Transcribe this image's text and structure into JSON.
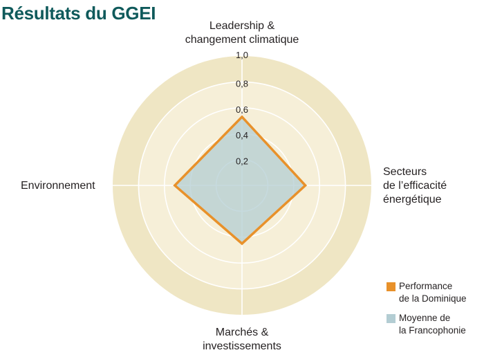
{
  "title": "Résultats du GGEI",
  "axes": {
    "top": [
      "Leadership &",
      "changement climatique"
    ],
    "right": [
      "Secteurs",
      "de l’efficacité",
      "énergétique"
    ],
    "bottom": [
      "Marchés &",
      "investissements"
    ],
    "left": [
      "Environnement"
    ]
  },
  "ticks": [
    "0,2",
    "0,4",
    "0,6",
    "0,8",
    "1,0"
  ],
  "legend": {
    "items": [
      {
        "lines": [
          "Performance",
          "de la Dominique"
        ],
        "color": "#e8912a"
      },
      {
        "lines": [
          "Moyenne de",
          "la Francophonie"
        ],
        "color": "#b3cdd3"
      }
    ]
  },
  "colors": {
    "title": "#0f5a5b",
    "outer_ring": "#efe6c4",
    "inner_ring": "#f6efd8",
    "dominique": "#e8912a",
    "francophonie": "#b3cdd3"
  },
  "chart_data": {
    "type": "radar",
    "title": "Résultats du GGEI",
    "categories": [
      "Leadership & changement climatique",
      "Secteurs de l’efficacité énergétique",
      "Marchés & investissements",
      "Environnement"
    ],
    "series": [
      {
        "name": "Performance de la Dominique",
        "values": [
          0.53,
          0.49,
          0.45,
          0.52
        ],
        "color": "#e8912a",
        "style": "outline"
      },
      {
        "name": "Moyenne de la Francophonie",
        "values": [
          0.53,
          0.49,
          0.46,
          0.52
        ],
        "color": "#b3cdd3",
        "style": "fill"
      }
    ],
    "rlim": [
      0,
      1.0
    ],
    "rticks": [
      0.2,
      0.4,
      0.6,
      0.8,
      1.0
    ],
    "grid": true,
    "legend_position": "bottom-right"
  }
}
